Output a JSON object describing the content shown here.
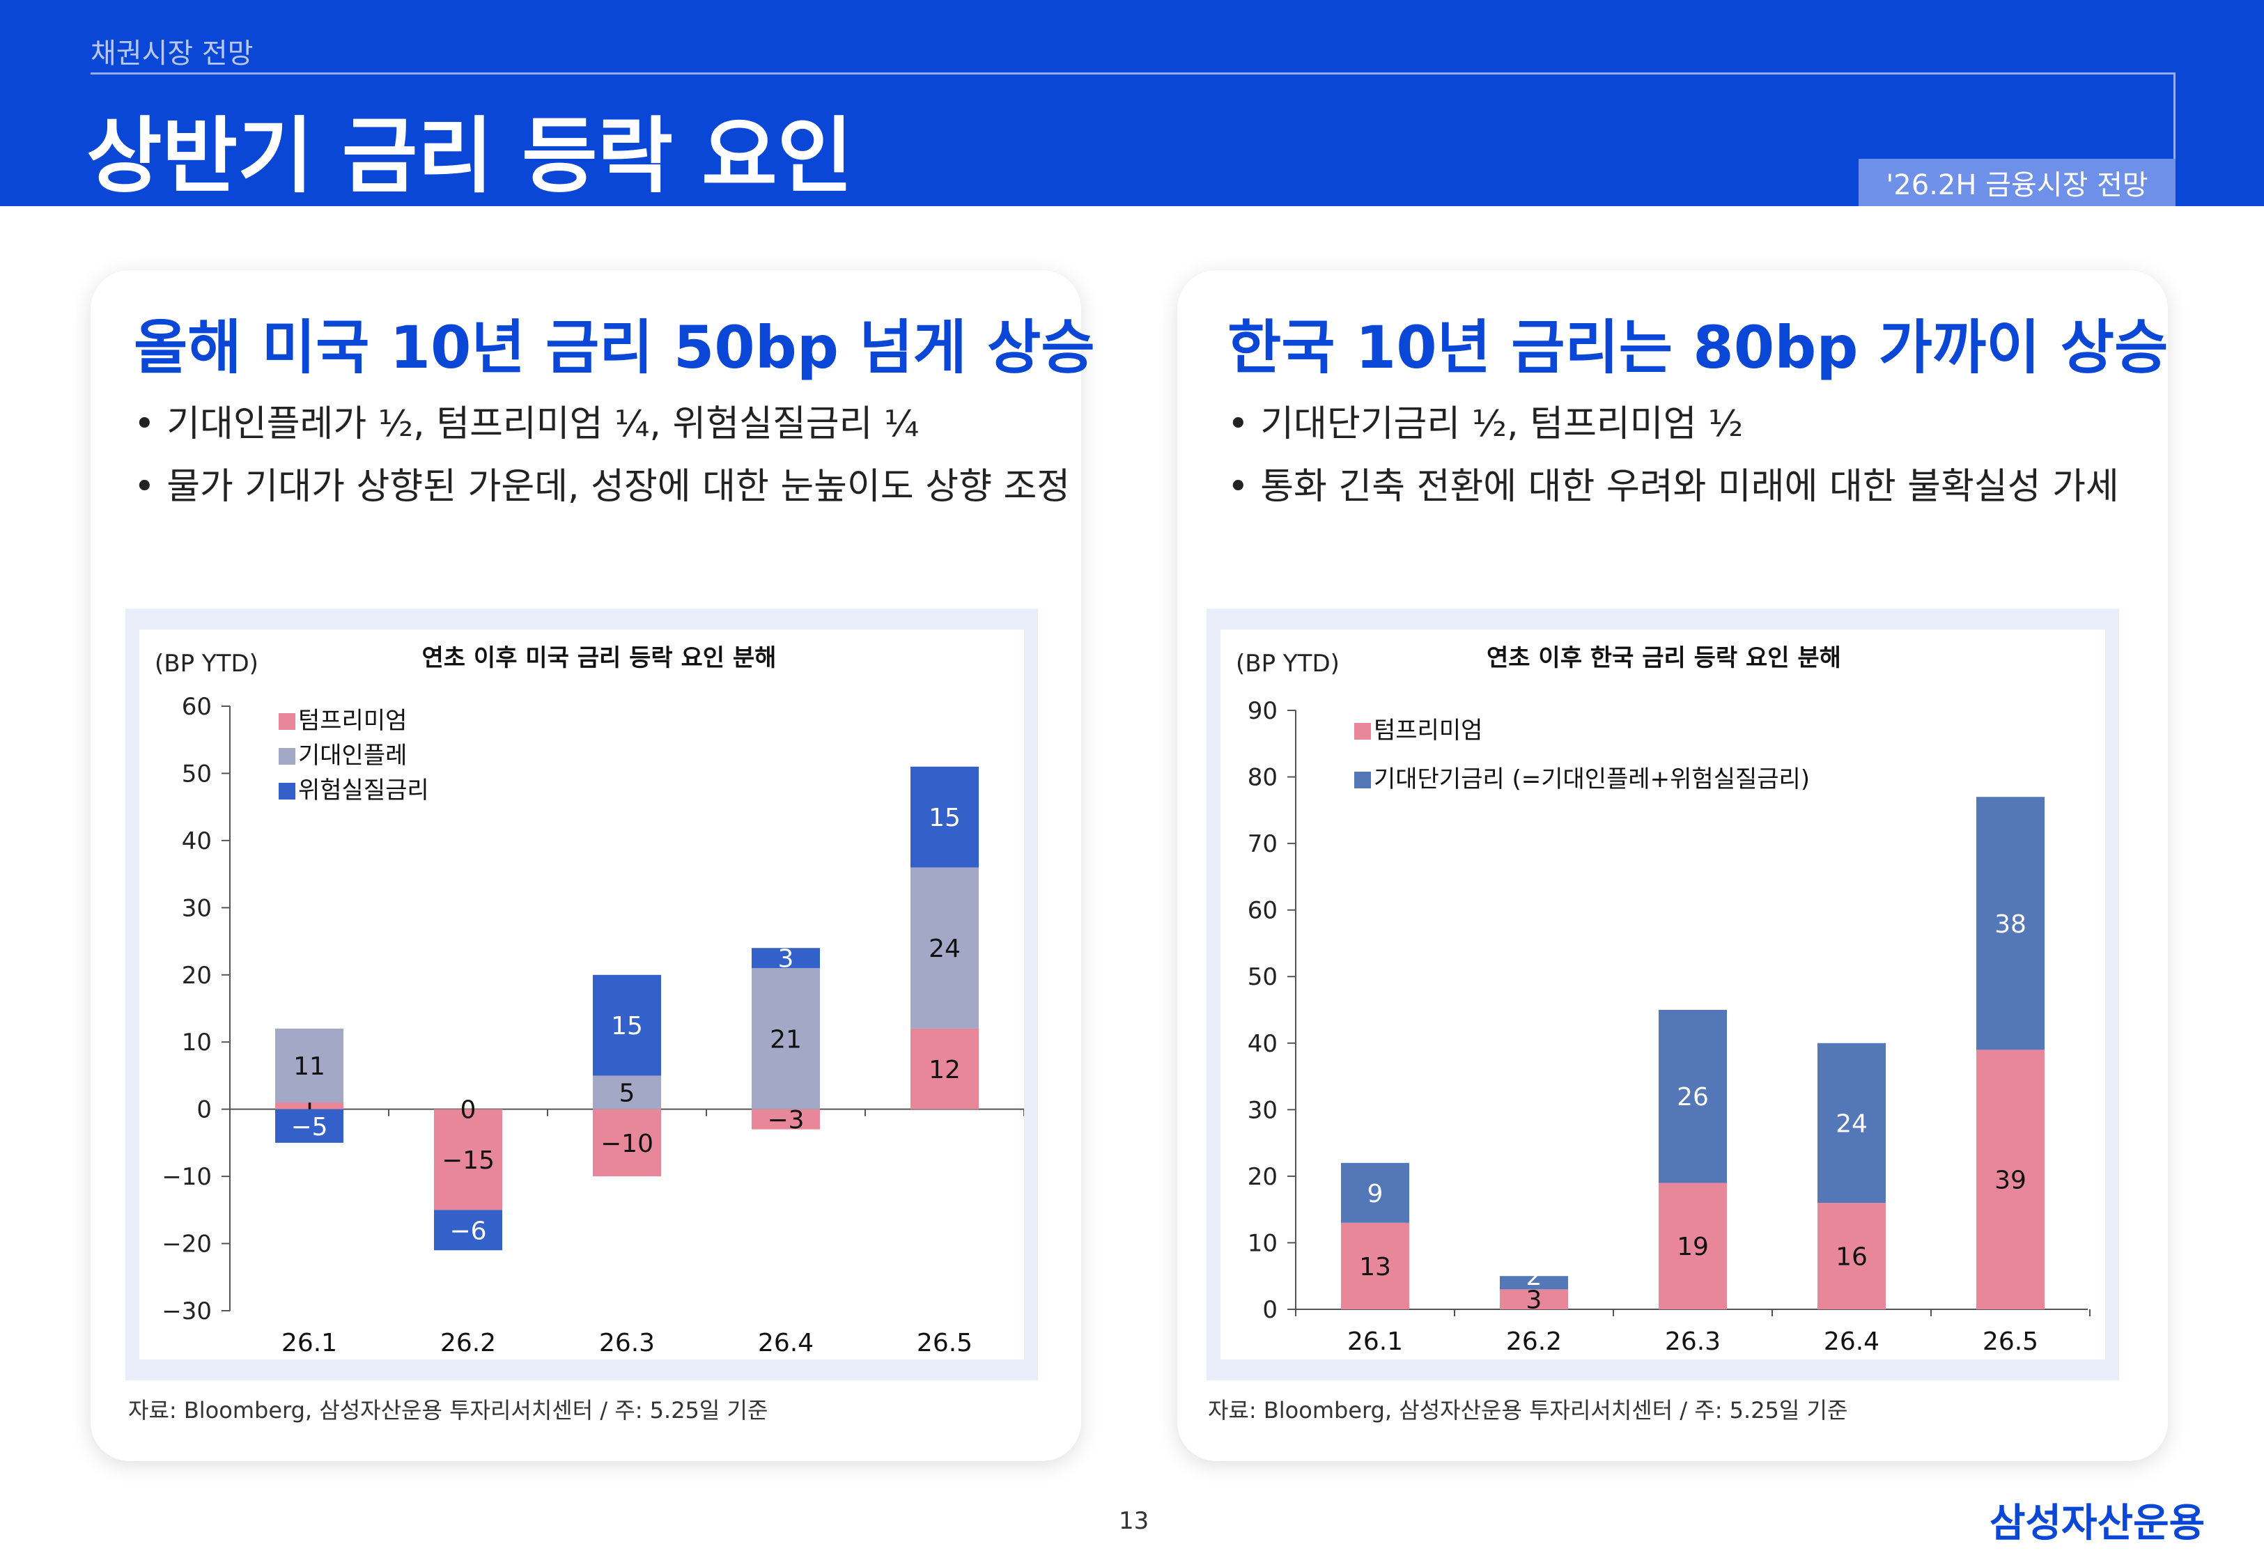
{
  "header": {
    "kicker": "채권시장 전망",
    "title": "상반기 금리 등락 요인",
    "tag": "'26.2H 금융시장 전망"
  },
  "left_card": {
    "heading": "올해 미국 10년 금리 50bp 넘게 상승",
    "bullets": [
      "• 기대인플레가 ½, 텀프리미엄 ¼, 위험실질금리 ¼",
      "• 물가 기대가 상향된 가운데, 성장에 대한 눈높이도 상향 조정"
    ],
    "source": "자료: Bloomberg, 삼성자산운용 투자리서치센터 / 주: 5.25일 기준"
  },
  "right_card": {
    "heading": "한국 10년 금리는 80bp 가까이 상승",
    "bullets": [
      "• 기대단기금리 ½, 텀프리미엄 ½",
      "• 통화 긴축 전환에 대한 우려와 미래에 대한 불확실성 가세"
    ],
    "source": "자료: Bloomberg, 삼성자산운용 투자리서치센터 / 주: 5.25일 기준"
  },
  "footer": {
    "page": "13",
    "logo": "삼성자산운용"
  },
  "chart_data": [
    {
      "type": "bar",
      "stacked": true,
      "title": "연초 이후 미국 금리 등락 요인 분해",
      "ylabel": "(BP YTD)",
      "categories": [
        "26.1",
        "26.2",
        "26.3",
        "26.4",
        "26.5"
      ],
      "ylim": [
        -30,
        60
      ],
      "yticks": [
        -30,
        -20,
        -10,
        0,
        10,
        20,
        30,
        40,
        50,
        60
      ],
      "legend_position": "top-left",
      "series": [
        {
          "name": "텀프리미엄",
          "color": "#e8879a",
          "values": [
            1,
            -15,
            -10,
            -3,
            12
          ],
          "labels": [
            "1",
            "-15",
            "-10",
            "-3",
            "12"
          ]
        },
        {
          "name": "기대인플레",
          "color": "#a2a8c6",
          "values": [
            11,
            0,
            5,
            21,
            24
          ],
          "labels": [
            "11",
            "0",
            "5",
            "21",
            "24"
          ]
        },
        {
          "name": "위험실질금리",
          "color": "#3461c9",
          "values": [
            -5,
            -6,
            15,
            3,
            15
          ],
          "labels": [
            "-5",
            "-6",
            "15",
            "3",
            "15"
          ]
        }
      ]
    },
    {
      "type": "bar",
      "stacked": true,
      "title": "연초 이후 한국 금리 등락 요인 분해",
      "ylabel": "(BP YTD)",
      "categories": [
        "26.1",
        "26.2",
        "26.3",
        "26.4",
        "26.5"
      ],
      "ylim": [
        0,
        90
      ],
      "yticks": [
        0,
        10,
        20,
        30,
        40,
        50,
        60,
        70,
        80,
        90
      ],
      "legend_position": "top-left",
      "series": [
        {
          "name": "텀프리미엄",
          "color": "#e8879a",
          "values": [
            13,
            3,
            19,
            16,
            39
          ],
          "labels": [
            "13",
            "3",
            "19",
            "16",
            "39"
          ]
        },
        {
          "name": "기대단기금리 (=기대인플레+위험실질금리)",
          "color": "#5477b8",
          "values": [
            9,
            2,
            26,
            24,
            38
          ],
          "labels": [
            "9",
            "2",
            "26",
            "24",
            "38"
          ]
        }
      ]
    }
  ]
}
